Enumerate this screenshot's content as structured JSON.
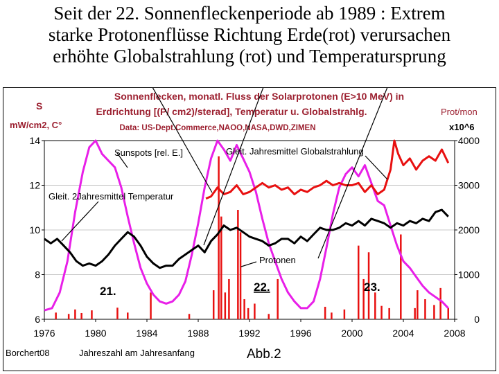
{
  "slide": {
    "title_lines": [
      "Seit der 22. Sonnenfleckenperiode ab 1989 : Extrem",
      "starke Protonenflüsse Richtung Erde(rot) verursachen",
      "erhöhte Globalstrahlung (rot) und Temperatursprung"
    ]
  },
  "chart_data": {
    "type": "line",
    "title_lines": [
      "Sonnenflecken, monatl. Fluss der Solarprotonen (E>10 MeV) in",
      "Erdrichtung [(P/ cm2)/sterad], Temperatur u. Globalstrahlg."
    ],
    "source": "Data: US-Dept.Commerce,NAOO,NASA,DWD,ZIMEN",
    "left_axis": {
      "label_1": "S",
      "label_2": "mW/cm2, C°",
      "range": [
        6,
        14
      ],
      "ticks": [
        "6",
        "8",
        "10",
        "12",
        "14"
      ]
    },
    "right_axis": {
      "label_1": "Prot/mon",
      "label_2": "x10^6",
      "range": [
        0,
        4000
      ],
      "ticks": [
        "0",
        "1000",
        "2000",
        "3000",
        "4000"
      ]
    },
    "x_axis": {
      "label": "Jahreszahl am Jahresanfang",
      "range": [
        1976,
        2008
      ],
      "ticks": [
        "1976",
        "1980",
        "1984",
        "1988",
        "1992",
        "1996",
        "2000",
        "2004",
        "2008"
      ]
    },
    "credit": "Borchert08",
    "figure_label": "Abb.2",
    "cycle_labels": [
      "21.",
      "22.",
      "23."
    ],
    "annotations": {
      "sunspots": "Sunspots [rel. E.]",
      "global": "Gleit. Jahresmittel Globalstrahlung",
      "temperature": "Gleit. 2Jahresmittel Temperatur",
      "protons": "Protonen"
    },
    "series": [
      {
        "name": "Sunspots [rel. E.]",
        "color": "#e81fe8",
        "axis": "left",
        "x": [
          1976,
          1976.6,
          1977.2,
          1977.8,
          1978.4,
          1979,
          1979.5,
          1980,
          1980.5,
          1981,
          1981.5,
          1982,
          1982.5,
          1983,
          1983.5,
          1984,
          1984.5,
          1985,
          1985.5,
          1986,
          1986.5,
          1987,
          1987.5,
          1988,
          1988.5,
          1989,
          1989.5,
          1990,
          1990.5,
          1991,
          1991.5,
          1992,
          1992.5,
          1993,
          1993.5,
          1994,
          1994.5,
          1995,
          1995.5,
          1996,
          1996.5,
          1997,
          1997.5,
          1998,
          1998.5,
          1999,
          1999.5,
          2000,
          2000.5,
          2001,
          2001.5,
          2002,
          2002.5,
          2003,
          2003.5,
          2004,
          2004.5,
          2005,
          2005.5,
          2006,
          2006.5,
          2007,
          2007.5
        ],
        "values": [
          6.4,
          6.5,
          7.2,
          8.6,
          10.8,
          12.6,
          13.7,
          14.0,
          13.4,
          13.1,
          12.8,
          11.9,
          10.6,
          9.4,
          8.3,
          7.6,
          7.1,
          6.8,
          6.7,
          6.8,
          7.1,
          7.7,
          8.9,
          10.3,
          11.9,
          13.2,
          14.0,
          13.6,
          13.1,
          13.8,
          13.2,
          12.6,
          11.7,
          10.5,
          9.4,
          8.6,
          7.8,
          7.2,
          6.8,
          6.5,
          6.5,
          6.8,
          7.8,
          9.2,
          10.7,
          11.9,
          12.5,
          12.8,
          12.4,
          12.9,
          12.1,
          11.3,
          11.1,
          10.2,
          9.3,
          8.6,
          8.3,
          7.9,
          7.5,
          7.2,
          7.0,
          6.8,
          6.5
        ]
      },
      {
        "name": "Gleit. Jahresmittel Globalstrahlung",
        "color": "#e81010",
        "axis": "left",
        "x": [
          1988.6,
          1989,
          1989.5,
          1990,
          1990.5,
          1991,
          1991.5,
          1992,
          1992.5,
          1993,
          1993.5,
          1994,
          1994.5,
          1995,
          1995.5,
          1996,
          1996.5,
          1997,
          1997.5,
          1998,
          1998.5,
          1999,
          1999.5,
          2000,
          2000.5,
          2001,
          2001.5,
          2002,
          2002.5,
          2003,
          2003.3,
          2003.6,
          2004,
          2004.5,
          2005,
          2005.5,
          2006,
          2006.5,
          2007,
          2007.5
        ],
        "values": [
          11.4,
          11.5,
          11.9,
          11.6,
          11.7,
          12.0,
          11.6,
          11.7,
          11.9,
          12.1,
          11.9,
          12.0,
          11.8,
          11.9,
          11.6,
          11.8,
          11.7,
          11.9,
          12.0,
          12.2,
          12.0,
          12.1,
          12.0,
          12.0,
          12.1,
          11.7,
          12.0,
          11.6,
          11.8,
          12.7,
          14.0,
          13.4,
          12.9,
          13.2,
          12.7,
          13.1,
          13.3,
          13.1,
          13.6,
          13.0
        ]
      },
      {
        "name": "Gleit. 2Jahresmittel Temperatur",
        "color": "#000000",
        "axis": "left",
        "x": [
          1976,
          1976.5,
          1977,
          1977.5,
          1978,
          1978.5,
          1979,
          1979.5,
          1980,
          1980.5,
          1981,
          1981.5,
          1982,
          1982.5,
          1983,
          1983.5,
          1984,
          1984.5,
          1985,
          1985.5,
          1986,
          1986.5,
          1987,
          1987.5,
          1988,
          1988.5,
          1989,
          1989.5,
          1990,
          1990.5,
          1991,
          1991.5,
          1992,
          1992.5,
          1993,
          1993.5,
          1994,
          1994.5,
          1995,
          1995.5,
          1996,
          1996.5,
          1997,
          1997.5,
          1998,
          1998.5,
          1999,
          1999.5,
          2000,
          2000.5,
          2001,
          2001.5,
          2002,
          2002.5,
          2003,
          2003.5,
          2004,
          2004.5,
          2005,
          2005.5,
          2006,
          2006.5,
          2007,
          2007.5
        ],
        "values": [
          9.6,
          9.4,
          9.6,
          9.3,
          9.0,
          8.6,
          8.4,
          8.5,
          8.4,
          8.6,
          8.9,
          9.3,
          9.6,
          9.9,
          9.7,
          9.3,
          8.8,
          8.5,
          8.3,
          8.4,
          8.4,
          8.7,
          8.9,
          9.1,
          9.3,
          9.0,
          9.5,
          9.8,
          10.2,
          10.0,
          10.1,
          9.9,
          9.7,
          9.6,
          9.5,
          9.3,
          9.4,
          9.6,
          9.6,
          9.4,
          9.7,
          9.5,
          9.8,
          10.1,
          10.0,
          10.0,
          10.1,
          10.3,
          10.2,
          10.4,
          10.2,
          10.5,
          10.4,
          10.3,
          10.1,
          10.3,
          10.2,
          10.4,
          10.3,
          10.5,
          10.4,
          10.8,
          10.9,
          10.6
        ]
      },
      {
        "name": "Protonen",
        "color": "#e81010",
        "axis": "right",
        "style": "spikes",
        "x": [
          1976.9,
          1977.9,
          1978.4,
          1978.9,
          1979.7,
          1981.7,
          1982.5,
          1984.3,
          1987.3,
          1989.2,
          1989.6,
          1989.8,
          1990.1,
          1990.4,
          1991.1,
          1991.3,
          1991.6,
          1991.9,
          1992.4,
          1993.5,
          1994.2,
          1997.9,
          1998.4,
          1999.4,
          2000.5,
          2000.9,
          2001.3,
          2001.8,
          2002.3,
          2002.9,
          2003.8,
          2004.9,
          2005.1,
          2005.7,
          2006.4,
          2006.9,
          2007.5
        ],
        "values": [
          150,
          120,
          220,
          140,
          200,
          260,
          150,
          600,
          120,
          650,
          3650,
          2300,
          600,
          900,
          2450,
          1950,
          450,
          250,
          350,
          120,
          900,
          280,
          150,
          220,
          1650,
          900,
          1500,
          600,
          300,
          250,
          1900,
          250,
          650,
          450,
          320,
          700,
          250
        ]
      }
    ]
  }
}
